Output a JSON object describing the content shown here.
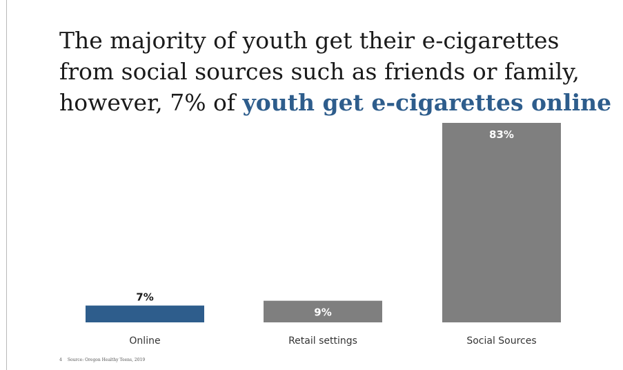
{
  "headline": {
    "part1": "The majority of youth get their e-cigarettes from social sources such as friends or family, however, 7% of ",
    "highlight": "youth get e-cigarettes online"
  },
  "footer": {
    "slide_number": "4",
    "source": "Source: Oregon Healthy Teens, 2019"
  },
  "colors": {
    "accent": "#2e5d8c",
    "bar_gray": "#7f7f7f",
    "text": "#1a1a1a"
  },
  "chart_data": {
    "type": "bar",
    "categories": [
      "Online",
      "Retail settings",
      "Social Sources"
    ],
    "values": [
      7,
      9,
      83
    ],
    "value_labels": [
      "7%",
      "9%",
      "83%"
    ],
    "bar_colors": [
      "#2e5d8c",
      "#7f7f7f",
      "#7f7f7f"
    ],
    "title": "",
    "xlabel": "",
    "ylabel": "",
    "ylim": [
      0,
      83
    ],
    "grid": false,
    "legend": "none"
  }
}
